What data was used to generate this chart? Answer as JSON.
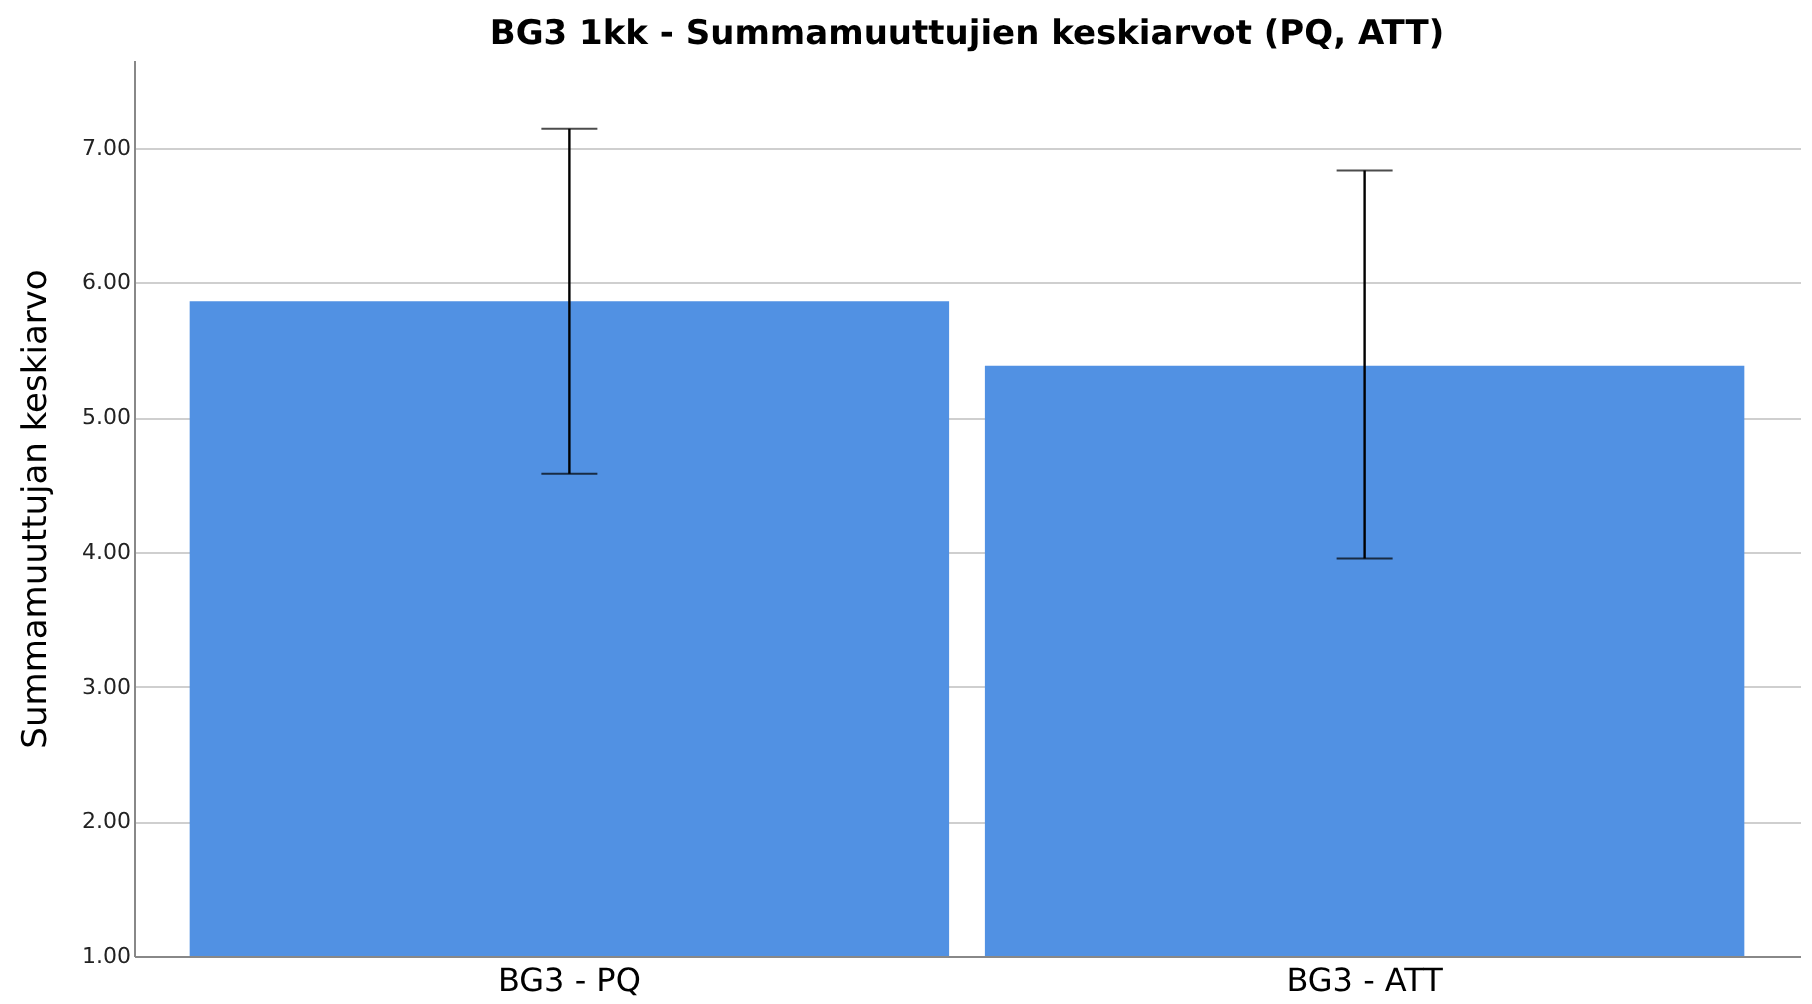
{
  "chart_data": {
    "type": "bar",
    "title": "BG3 1kk - Summamuuttujien keskiarvot (PQ, ATT)",
    "ylabel": "Summamuuttujan keskiarvo",
    "categories": [
      "BG3 - PQ",
      "BG3 - ATT"
    ],
    "values": [
      5.86,
      5.38
    ],
    "color": "#5191e3",
    "errors": [
      [
        4.58,
        7.14
      ],
      [
        3.95,
        6.83
      ]
    ],
    "ylim": [
      1,
      7.65
    ],
    "yticks": [
      {
        "value": 1,
        "label": "1.00"
      },
      {
        "value": 2,
        "label": "2.00"
      },
      {
        "value": 3,
        "label": "3.00"
      },
      {
        "value": 4,
        "label": "4.00"
      },
      {
        "value": 5,
        "label": "5.00"
      },
      {
        "value": 6,
        "label": "6.00"
      },
      {
        "value": 7,
        "label": "7.00"
      }
    ],
    "grid": "y"
  }
}
